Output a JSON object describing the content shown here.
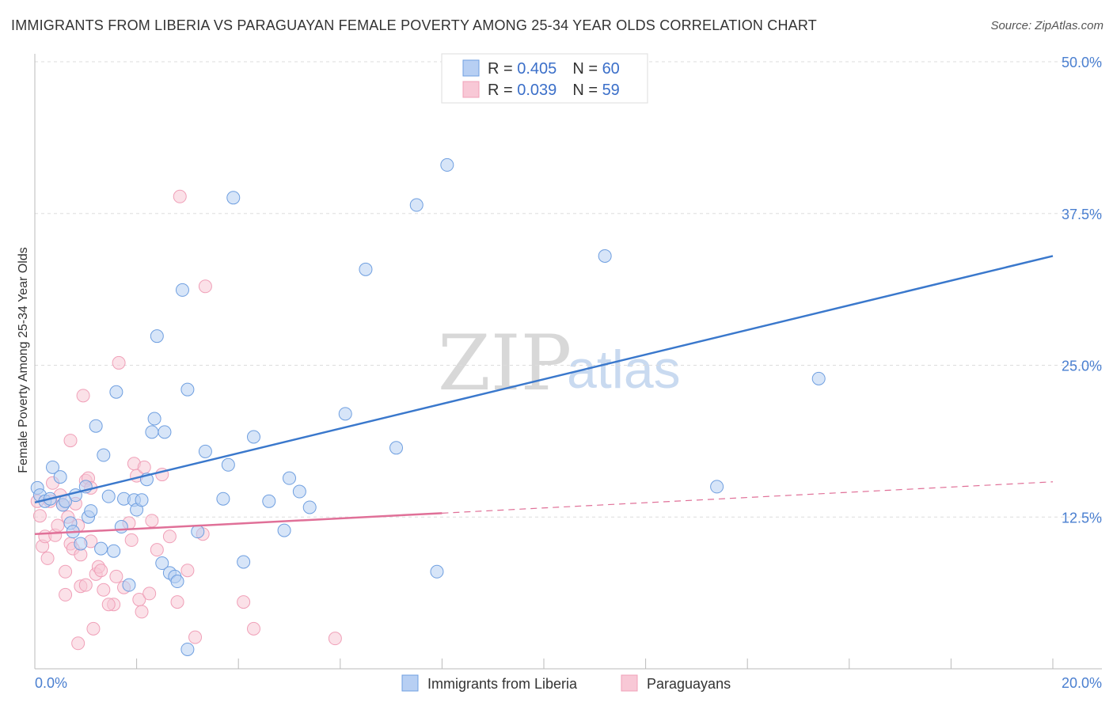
{
  "header": {
    "title": "IMMIGRANTS FROM LIBERIA VS PARAGUAYAN FEMALE POVERTY AMONG 25-34 YEAR OLDS CORRELATION CHART",
    "source": "Source: ZipAtlas.com"
  },
  "watermark": {
    "zip": "ZIP",
    "atlas": "atlas"
  },
  "legend": {
    "r_label": "R = ",
    "n_label": "N = ",
    "series": [
      {
        "r": "0.405",
        "n": "60"
      },
      {
        "r": "0.039",
        "n": "59"
      }
    ]
  },
  "chart_data": {
    "type": "scatter",
    "title": "IMMIGRANTS FROM LIBERIA VS PARAGUAYAN FEMALE POVERTY AMONG 25-34 YEAR OLDS CORRELATION CHART",
    "xlabel": "",
    "ylabel": "Female Poverty Among 25-34 Year Olds",
    "xlim": [
      0,
      20
    ],
    "ylim": [
      0,
      50
    ],
    "x_tick_labels": [
      "0.0%",
      "20.0%"
    ],
    "y_ticks": [
      12.5,
      25.0,
      37.5,
      50.0
    ],
    "y_tick_labels": [
      "12.5%",
      "25.0%",
      "37.5%",
      "50.0%"
    ],
    "series": [
      {
        "name": "Immigrants from Liberia",
        "color": "#6f9fe0",
        "fill": "#b7cff3",
        "regression": {
          "x0": 0,
          "y0": 13.7,
          "x1": 20,
          "y1": 34.0,
          "dashed_from": null
        },
        "points": [
          [
            0.05,
            14.9
          ],
          [
            0.1,
            14.3
          ],
          [
            0.2,
            13.8
          ],
          [
            0.3,
            14.0
          ],
          [
            0.35,
            16.6
          ],
          [
            0.5,
            15.8
          ],
          [
            0.55,
            13.5
          ],
          [
            0.6,
            13.8
          ],
          [
            0.7,
            12.0
          ],
          [
            0.75,
            11.3
          ],
          [
            0.8,
            14.3
          ],
          [
            0.9,
            10.3
          ],
          [
            1.0,
            15.0
          ],
          [
            1.05,
            12.5
          ],
          [
            1.1,
            13.0
          ],
          [
            1.2,
            20.0
          ],
          [
            1.3,
            9.9
          ],
          [
            1.35,
            17.6
          ],
          [
            1.45,
            14.2
          ],
          [
            1.55,
            9.7
          ],
          [
            1.6,
            22.8
          ],
          [
            1.7,
            11.7
          ],
          [
            1.75,
            14.0
          ],
          [
            1.85,
            6.9
          ],
          [
            1.95,
            13.9
          ],
          [
            2.0,
            13.1
          ],
          [
            2.1,
            13.9
          ],
          [
            2.2,
            15.6
          ],
          [
            2.3,
            19.5
          ],
          [
            2.35,
            20.6
          ],
          [
            2.4,
            27.4
          ],
          [
            2.5,
            8.7
          ],
          [
            2.55,
            19.5
          ],
          [
            2.65,
            7.9
          ],
          [
            2.75,
            7.6
          ],
          [
            2.8,
            7.2
          ],
          [
            2.9,
            31.2
          ],
          [
            3.0,
            23.0
          ],
          [
            3.0,
            1.6
          ],
          [
            3.2,
            11.3
          ],
          [
            3.35,
            17.9
          ],
          [
            3.7,
            14.0
          ],
          [
            3.8,
            16.8
          ],
          [
            3.9,
            38.8
          ],
          [
            4.1,
            8.8
          ],
          [
            4.3,
            19.1
          ],
          [
            4.6,
            13.8
          ],
          [
            4.9,
            11.4
          ],
          [
            5.0,
            15.7
          ],
          [
            5.2,
            14.6
          ],
          [
            5.4,
            13.3
          ],
          [
            6.1,
            21.0
          ],
          [
            6.5,
            32.9
          ],
          [
            7.1,
            18.2
          ],
          [
            7.5,
            38.2
          ],
          [
            7.9,
            8.0
          ],
          [
            8.1,
            41.5
          ],
          [
            11.2,
            34.0
          ],
          [
            13.4,
            15.0
          ],
          [
            15.4,
            23.9
          ]
        ]
      },
      {
        "name": "Paraguayans",
        "color": "#f0a0b8",
        "fill": "#f8c8d6",
        "regression": {
          "x0": 0,
          "y0": 11.1,
          "x1": 20,
          "y1": 15.4,
          "dashed_from": 8.0
        },
        "points": [
          [
            0.05,
            13.8
          ],
          [
            0.1,
            12.6
          ],
          [
            0.15,
            10.1
          ],
          [
            0.2,
            10.9
          ],
          [
            0.25,
            9.1
          ],
          [
            0.3,
            13.8
          ],
          [
            0.35,
            15.3
          ],
          [
            0.4,
            11.0
          ],
          [
            0.45,
            11.8
          ],
          [
            0.5,
            14.3
          ],
          [
            0.55,
            13.5
          ],
          [
            0.6,
            8.0
          ],
          [
            0.6,
            6.1
          ],
          [
            0.65,
            12.5
          ],
          [
            0.7,
            10.3
          ],
          [
            0.7,
            18.8
          ],
          [
            0.75,
            9.9
          ],
          [
            0.8,
            13.6
          ],
          [
            0.85,
            11.8
          ],
          [
            0.85,
            2.1
          ],
          [
            0.9,
            9.4
          ],
          [
            0.9,
            6.8
          ],
          [
            0.95,
            22.5
          ],
          [
            1.0,
            15.5
          ],
          [
            1.0,
            6.9
          ],
          [
            1.05,
            15.7
          ],
          [
            1.1,
            14.9
          ],
          [
            1.1,
            10.5
          ],
          [
            1.15,
            3.3
          ],
          [
            1.2,
            7.8
          ],
          [
            1.25,
            8.4
          ],
          [
            1.3,
            8.1
          ],
          [
            1.35,
            6.5
          ],
          [
            1.55,
            5.3
          ],
          [
            1.6,
            7.6
          ],
          [
            1.65,
            25.2
          ],
          [
            1.75,
            6.7
          ],
          [
            1.85,
            12.0
          ],
          [
            1.9,
            10.6
          ],
          [
            1.95,
            16.9
          ],
          [
            2.0,
            15.9
          ],
          [
            2.05,
            5.7
          ],
          [
            2.1,
            4.7
          ],
          [
            2.15,
            16.6
          ],
          [
            2.25,
            6.2
          ],
          [
            2.3,
            12.2
          ],
          [
            2.4,
            9.8
          ],
          [
            2.5,
            16.0
          ],
          [
            2.65,
            10.9
          ],
          [
            2.8,
            5.5
          ],
          [
            2.85,
            38.9
          ],
          [
            3.0,
            8.1
          ],
          [
            3.15,
            2.6
          ],
          [
            3.3,
            11.1
          ],
          [
            3.35,
            31.5
          ],
          [
            4.1,
            5.5
          ],
          [
            4.3,
            3.3
          ],
          [
            5.9,
            2.5
          ],
          [
            1.45,
            5.3
          ]
        ]
      }
    ]
  },
  "bottom_legend": {
    "items": [
      {
        "label": "Immigrants from Liberia"
      },
      {
        "label": "Paraguayans"
      }
    ]
  },
  "colors": {
    "blue_line": "#3a78cc",
    "pink_line": "#e07098",
    "blue_fill": "#b7cff3",
    "pink_fill": "#f8c8d6",
    "grid": "#dddddd"
  }
}
